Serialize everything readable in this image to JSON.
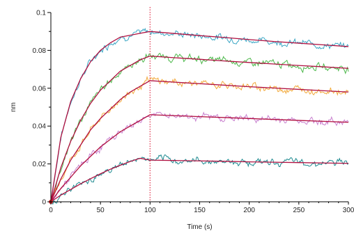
{
  "chart_data": {
    "type": "line",
    "xlabel": "Time (s)",
    "ylabel": "nm",
    "xlim": [
      0,
      300
    ],
    "ylim": [
      0,
      0.1
    ],
    "xticks": [
      0,
      50,
      100,
      150,
      200,
      250,
      300
    ],
    "xtick_labels": [
      "0",
      "50",
      "100",
      "150",
      "200",
      "250",
      "300"
    ],
    "yticks": [
      0,
      0.02,
      0.04,
      0.06,
      0.08,
      0.1
    ],
    "ytick_labels": [
      "0",
      "0.02",
      "0.04",
      "0.06",
      "0.08",
      "0.1"
    ],
    "grid": false,
    "legend": "none",
    "marker_line": {
      "x": 100,
      "color": "#e0304a",
      "style": "dotted"
    },
    "fit_color": "#b01040",
    "x": [
      0,
      10,
      20,
      30,
      40,
      50,
      60,
      70,
      80,
      90,
      100,
      125,
      150,
      175,
      200,
      225,
      250,
      275,
      300
    ],
    "series": [
      {
        "color": "#3aa6c4",
        "values": [
          0,
          0.034,
          0.053,
          0.065,
          0.074,
          0.08,
          0.084,
          0.087,
          0.088,
          0.089,
          0.09,
          0.0889,
          0.0878,
          0.0868,
          0.0857,
          0.0847,
          0.0838,
          0.0829,
          0.082
        ]
      },
      {
        "color": "#4cb84a",
        "values": [
          0,
          0.018,
          0.032,
          0.043,
          0.052,
          0.059,
          0.064,
          0.069,
          0.072,
          0.075,
          0.077,
          0.0761,
          0.0753,
          0.0744,
          0.0736,
          0.0728,
          0.072,
          0.0713,
          0.0705
        ]
      },
      {
        "color": "#f2a93b",
        "values": [
          0,
          0.012,
          0.022,
          0.03,
          0.038,
          0.044,
          0.049,
          0.054,
          0.058,
          0.061,
          0.064,
          0.0632,
          0.0624,
          0.0616,
          0.0608,
          0.0601,
          0.0594,
          0.0587,
          0.058
        ]
      },
      {
        "color": "#c980cf",
        "values": [
          0,
          0.007,
          0.013,
          0.019,
          0.024,
          0.029,
          0.033,
          0.037,
          0.04,
          0.043,
          0.046,
          0.0455,
          0.045,
          0.0445,
          0.044,
          0.0435,
          0.043,
          0.0425,
          0.042
        ]
      },
      {
        "color": "#1e8a90",
        "values": [
          0,
          0.0035,
          0.0065,
          0.0095,
          0.0122,
          0.0148,
          0.0172,
          0.0193,
          0.0213,
          0.023,
          0.022,
          0.0218,
          0.0216,
          0.0214,
          0.0211,
          0.0209,
          0.0207,
          0.0205,
          0.0203
        ]
      }
    ]
  }
}
